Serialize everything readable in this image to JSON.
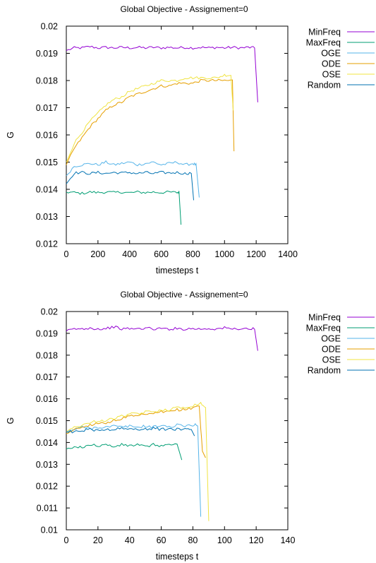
{
  "chart_data": [
    {
      "type": "line",
      "title": "Global Objective - Assignement=0",
      "xlabel": "timesteps t",
      "ylabel": "G",
      "xlim": [
        0,
        1400
      ],
      "ylim": [
        0.012,
        0.02
      ],
      "xticks": [
        "0",
        "200",
        "400",
        "600",
        "800",
        "1000",
        "1200",
        "1400"
      ],
      "yticks": [
        "0.012",
        "0.013",
        "0.014",
        "0.015",
        "0.016",
        "0.017",
        "0.018",
        "0.019",
        "0.02"
      ],
      "grid": false,
      "legend": "top-right outside plot",
      "series": [
        {
          "name": "MinFreq",
          "color": "#9400d3",
          "points": [
            [
              0,
              0.0191
            ],
            [
              50,
              0.0192
            ],
            [
              100,
              0.0192
            ],
            [
              150,
              0.01925
            ],
            [
              200,
              0.0192
            ],
            [
              250,
              0.01922
            ],
            [
              300,
              0.0192
            ],
            [
              350,
              0.01922
            ],
            [
              400,
              0.0192
            ],
            [
              450,
              0.01922
            ],
            [
              500,
              0.0192
            ],
            [
              550,
              0.01922
            ],
            [
              600,
              0.0192
            ],
            [
              650,
              0.01922
            ],
            [
              700,
              0.0192
            ],
            [
              750,
              0.01922
            ],
            [
              800,
              0.0192
            ],
            [
              850,
              0.01922
            ],
            [
              900,
              0.0192
            ],
            [
              950,
              0.01922
            ],
            [
              1000,
              0.0192
            ],
            [
              1050,
              0.01922
            ],
            [
              1100,
              0.0192
            ],
            [
              1150,
              0.01922
            ],
            [
              1190,
              0.0192
            ],
            [
              1210,
              0.0172
            ]
          ]
        },
        {
          "name": "MaxFreq",
          "color": "#009e73",
          "points": [
            [
              0,
              0.0139
            ],
            [
              50,
              0.01388
            ],
            [
              100,
              0.01385
            ],
            [
              150,
              0.0139
            ],
            [
              200,
              0.01388
            ],
            [
              250,
              0.0139
            ],
            [
              300,
              0.01388
            ],
            [
              350,
              0.0139
            ],
            [
              400,
              0.01387
            ],
            [
              450,
              0.0139
            ],
            [
              500,
              0.01388
            ],
            [
              550,
              0.0139
            ],
            [
              600,
              0.01388
            ],
            [
              650,
              0.0139
            ],
            [
              700,
              0.01388
            ],
            [
              712,
              0.0139
            ],
            [
              725,
              0.0127
            ]
          ]
        },
        {
          "name": "OGE",
          "color": "#56b4e9",
          "points": [
            [
              0,
              0.0145
            ],
            [
              50,
              0.01485
            ],
            [
              100,
              0.0149
            ],
            [
              150,
              0.01495
            ],
            [
              200,
              0.0149
            ],
            [
              250,
              0.015
            ],
            [
              300,
              0.0149
            ],
            [
              350,
              0.01495
            ],
            [
              400,
              0.015
            ],
            [
              450,
              0.0149
            ],
            [
              500,
              0.01495
            ],
            [
              550,
              0.015
            ],
            [
              600,
              0.0149
            ],
            [
              650,
              0.01495
            ],
            [
              700,
              0.015
            ],
            [
              750,
              0.0149
            ],
            [
              800,
              0.01495
            ],
            [
              820,
              0.0149
            ],
            [
              840,
              0.0137
            ]
          ]
        },
        {
          "name": "ODE",
          "color": "#e69f00",
          "points": [
            [
              0,
              0.0149
            ],
            [
              50,
              0.0155
            ],
            [
              100,
              0.0159
            ],
            [
              150,
              0.0163
            ],
            [
              200,
              0.0166
            ],
            [
              250,
              0.0169
            ],
            [
              300,
              0.0171
            ],
            [
              350,
              0.0172
            ],
            [
              400,
              0.0174
            ],
            [
              450,
              0.0175
            ],
            [
              500,
              0.0176
            ],
            [
              550,
              0.0177
            ],
            [
              600,
              0.0178
            ],
            [
              650,
              0.0178
            ],
            [
              700,
              0.0179
            ],
            [
              750,
              0.0179
            ],
            [
              800,
              0.0179
            ],
            [
              850,
              0.018
            ],
            [
              900,
              0.018
            ],
            [
              950,
              0.018
            ],
            [
              1000,
              0.018
            ],
            [
              1050,
              0.018
            ],
            [
              1060,
              0.0154
            ]
          ]
        },
        {
          "name": "OSE",
          "color": "#f0e442",
          "points": [
            [
              0,
              0.015
            ],
            [
              50,
              0.0157
            ],
            [
              100,
              0.0161
            ],
            [
              150,
              0.0165
            ],
            [
              200,
              0.0168
            ],
            [
              250,
              0.0171
            ],
            [
              300,
              0.0173
            ],
            [
              350,
              0.0174
            ],
            [
              400,
              0.0176
            ],
            [
              450,
              0.0177
            ],
            [
              500,
              0.0178
            ],
            [
              550,
              0.0179
            ],
            [
              600,
              0.018
            ],
            [
              650,
              0.018
            ],
            [
              700,
              0.018
            ],
            [
              750,
              0.0181
            ],
            [
              800,
              0.0181
            ],
            [
              850,
              0.0181
            ],
            [
              900,
              0.0181
            ],
            [
              950,
              0.0181
            ],
            [
              1000,
              0.0182
            ],
            [
              1040,
              0.0182
            ],
            [
              1055,
              0.0169
            ]
          ]
        },
        {
          "name": "Random",
          "color": "#0072b2",
          "points": [
            [
              0,
              0.0142
            ],
            [
              50,
              0.0146
            ],
            [
              100,
              0.01462
            ],
            [
              150,
              0.01458
            ],
            [
              200,
              0.01462
            ],
            [
              250,
              0.01458
            ],
            [
              300,
              0.01462
            ],
            [
              350,
              0.0146
            ],
            [
              400,
              0.01462
            ],
            [
              450,
              0.01458
            ],
            [
              500,
              0.01462
            ],
            [
              550,
              0.01458
            ],
            [
              600,
              0.01462
            ],
            [
              650,
              0.0146
            ],
            [
              700,
              0.01462
            ],
            [
              750,
              0.01458
            ],
            [
              790,
              0.0146
            ],
            [
              805,
              0.0136
            ]
          ]
        }
      ]
    },
    {
      "type": "line",
      "title": "Global Objective - Assignement=0",
      "xlabel": "timesteps t",
      "ylabel": "G",
      "xlim": [
        0,
        140
      ],
      "ylim": [
        0.01,
        0.02
      ],
      "xticks": [
        "0",
        "20",
        "40",
        "60",
        "80",
        "100",
        "120",
        "140"
      ],
      "yticks": [
        "0.01",
        "0.011",
        "0.012",
        "0.013",
        "0.014",
        "0.015",
        "0.016",
        "0.017",
        "0.018",
        "0.019",
        "0.02"
      ],
      "grid": false,
      "legend": "top-right outside plot",
      "series": [
        {
          "name": "MinFreq",
          "color": "#9400d3",
          "points": [
            [
              0,
              0.0191
            ],
            [
              5,
              0.0192
            ],
            [
              10,
              0.0192
            ],
            [
              15,
              0.01925
            ],
            [
              20,
              0.0192
            ],
            [
              25,
              0.01922
            ],
            [
              30,
              0.0193
            ],
            [
              35,
              0.0192
            ],
            [
              40,
              0.01922
            ],
            [
              45,
              0.0192
            ],
            [
              50,
              0.01925
            ],
            [
              55,
              0.0192
            ],
            [
              60,
              0.01922
            ],
            [
              65,
              0.0192
            ],
            [
              70,
              0.01922
            ],
            [
              75,
              0.0192
            ],
            [
              80,
              0.01922
            ],
            [
              85,
              0.0192
            ],
            [
              90,
              0.01922
            ],
            [
              95,
              0.0192
            ],
            [
              100,
              0.01925
            ],
            [
              105,
              0.0192
            ],
            [
              110,
              0.01922
            ],
            [
              115,
              0.0192
            ],
            [
              119,
              0.0192
            ],
            [
              121,
              0.0182
            ]
          ]
        },
        {
          "name": "MaxFreq",
          "color": "#009e73",
          "points": [
            [
              0,
              0.0137
            ],
            [
              5,
              0.01375
            ],
            [
              10,
              0.0138
            ],
            [
              15,
              0.0139
            ],
            [
              20,
              0.01385
            ],
            [
              25,
              0.0139
            ],
            [
              30,
              0.0138
            ],
            [
              35,
              0.0139
            ],
            [
              40,
              0.01385
            ],
            [
              45,
              0.0139
            ],
            [
              50,
              0.0138
            ],
            [
              55,
              0.0139
            ],
            [
              60,
              0.01385
            ],
            [
              65,
              0.0139
            ],
            [
              70,
              0.0139
            ],
            [
              73,
              0.0132
            ]
          ]
        },
        {
          "name": "OGE",
          "color": "#56b4e9",
          "points": [
            [
              0,
              0.0145
            ],
            [
              5,
              0.0146
            ],
            [
              10,
              0.0147
            ],
            [
              15,
              0.01465
            ],
            [
              20,
              0.0147
            ],
            [
              25,
              0.0147
            ],
            [
              30,
              0.01475
            ],
            [
              35,
              0.0147
            ],
            [
              40,
              0.01475
            ],
            [
              45,
              0.0147
            ],
            [
              50,
              0.01475
            ],
            [
              55,
              0.0147
            ],
            [
              60,
              0.0148
            ],
            [
              65,
              0.0147
            ],
            [
              70,
              0.0148
            ],
            [
              75,
              0.01475
            ],
            [
              80,
              0.0148
            ],
            [
              83,
              0.0148
            ],
            [
              85,
              0.0106
            ]
          ]
        },
        {
          "name": "ODE",
          "color": "#e69f00",
          "points": [
            [
              0,
              0.0144
            ],
            [
              5,
              0.0146
            ],
            [
              10,
              0.0147
            ],
            [
              15,
              0.0148
            ],
            [
              20,
              0.0149
            ],
            [
              25,
              0.0149
            ],
            [
              30,
              0.015
            ],
            [
              35,
              0.0151
            ],
            [
              40,
              0.0152
            ],
            [
              45,
              0.0152
            ],
            [
              50,
              0.0153
            ],
            [
              55,
              0.0153
            ],
            [
              60,
              0.0154
            ],
            [
              65,
              0.0154
            ],
            [
              70,
              0.0155
            ],
            [
              75,
              0.0155
            ],
            [
              80,
              0.0156
            ],
            [
              84,
              0.0157
            ],
            [
              86,
              0.0136
            ],
            [
              88,
              0.0133
            ]
          ]
        },
        {
          "name": "OSE",
          "color": "#f0e442",
          "points": [
            [
              0,
              0.0145
            ],
            [
              5,
              0.0147
            ],
            [
              10,
              0.0148
            ],
            [
              15,
              0.0149
            ],
            [
              20,
              0.015
            ],
            [
              25,
              0.015
            ],
            [
              30,
              0.0151
            ],
            [
              35,
              0.0152
            ],
            [
              40,
              0.0153
            ],
            [
              45,
              0.0153
            ],
            [
              50,
              0.0154
            ],
            [
              55,
              0.0154
            ],
            [
              60,
              0.0155
            ],
            [
              65,
              0.0155
            ],
            [
              70,
              0.0156
            ],
            [
              75,
              0.0156
            ],
            [
              80,
              0.0157
            ],
            [
              85,
              0.0158
            ],
            [
              88,
              0.0156
            ],
            [
              90,
              0.0104
            ]
          ]
        },
        {
          "name": "Random",
          "color": "#0072b2",
          "points": [
            [
              0,
              0.0145
            ],
            [
              5,
              0.0145
            ],
            [
              10,
              0.01455
            ],
            [
              15,
              0.0146
            ],
            [
              20,
              0.01455
            ],
            [
              25,
              0.0146
            ],
            [
              30,
              0.0146
            ],
            [
              35,
              0.01465
            ],
            [
              40,
              0.0146
            ],
            [
              45,
              0.01462
            ],
            [
              50,
              0.0146
            ],
            [
              55,
              0.01465
            ],
            [
              60,
              0.0146
            ],
            [
              65,
              0.01462
            ],
            [
              70,
              0.0146
            ],
            [
              75,
              0.01465
            ],
            [
              79,
              0.0146
            ],
            [
              81,
              0.0143
            ]
          ]
        }
      ]
    }
  ]
}
